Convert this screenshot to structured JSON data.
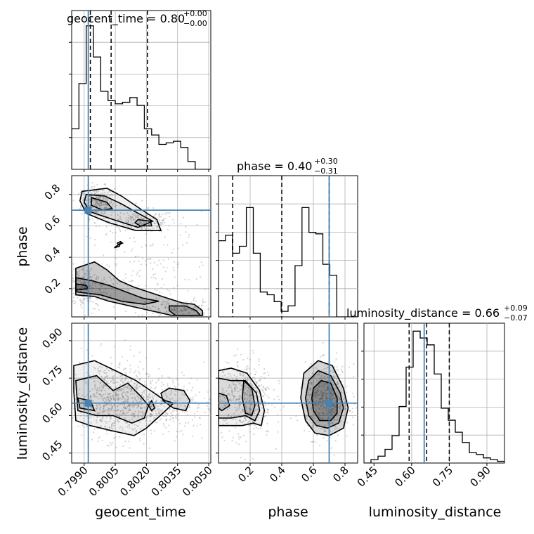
{
  "figure": {
    "type": "corner-plot",
    "truth_color": "#4682b4",
    "parameters": [
      "geocent_time",
      "phase",
      "luminosity_distance"
    ]
  },
  "titles": {
    "geocent_time": {
      "name": "geocent_time",
      "value": "0.80",
      "plus": "+0.00",
      "minus": "−0.00"
    },
    "phase": {
      "name": "phase",
      "value": "0.40",
      "plus": "+0.30",
      "minus": "−0.31"
    },
    "luminosity_distance": {
      "name": "luminosity_distance",
      "value": "0.66",
      "plus": "+0.09",
      "minus": "−0.07"
    }
  },
  "axis_labels": {
    "x_geocent_time": "geocent_time",
    "x_phase": "phase",
    "x_luminosity_distance": "luminosity_distance",
    "y_phase": "phase",
    "y_luminosity_distance": "luminosity_distance"
  },
  "chart_data": [
    {
      "type": "histogram",
      "parameter": "geocent_time",
      "xlim": [
        0.7984,
        0.8051
      ],
      "xticks": [
        "0.7990",
        "0.8005",
        "0.8020",
        "0.8035",
        "0.8050"
      ],
      "xtick_values": [
        0.799,
        0.8005,
        0.802,
        0.8035,
        0.805
      ],
      "bin_edges": [
        0.7984,
        0.79875,
        0.7991,
        0.79945,
        0.7998,
        0.80015,
        0.8005,
        0.80085,
        0.8012,
        0.80155,
        0.8019,
        0.80225,
        0.8026,
        0.80295,
        0.8033,
        0.80365,
        0.804,
        0.80435,
        0.8047,
        0.8051
      ],
      "counts": [
        0.26,
        0.55,
        0.92,
        0.72,
        0.5,
        0.44,
        0.42,
        0.43,
        0.46,
        0.41,
        0.26,
        0.22,
        0.16,
        0.17,
        0.18,
        0.14,
        0.05,
        0.0,
        0.0
      ],
      "ylim": [
        0,
        1.0
      ],
      "quantiles": [
        0.7993,
        0.8003,
        0.80205
      ],
      "truth": 0.7992
    },
    {
      "type": "histogram",
      "parameter": "phase",
      "xlim": [
        0.0,
        0.88
      ],
      "xticks": [
        "0.2",
        "0.4",
        "0.6",
        "0.8"
      ],
      "xtick_values": [
        0.2,
        0.4,
        0.6,
        0.8
      ],
      "bin_edges": [
        0.0,
        0.044,
        0.088,
        0.132,
        0.176,
        0.22,
        0.264,
        0.308,
        0.352,
        0.396,
        0.44,
        0.484,
        0.528,
        0.572,
        0.616,
        0.66,
        0.704,
        0.748,
        0.792,
        0.836,
        0.88
      ],
      "counts": [
        0.55,
        0.59,
        0.46,
        0.51,
        0.79,
        0.46,
        0.18,
        0.16,
        0.11,
        0.04,
        0.08,
        0.37,
        0.79,
        0.61,
        0.6,
        0.38,
        0.3,
        0.0,
        0.0,
        0.0
      ],
      "ylim": [
        0,
        1.0
      ],
      "quantiles": [
        0.09,
        0.4,
        0.7
      ],
      "truth": 0.7
    },
    {
      "type": "histogram",
      "parameter": "luminosity_distance",
      "xlim": [
        0.41,
        0.97
      ],
      "xticks": [
        "0.45",
        "0.60",
        "0.75",
        "0.90"
      ],
      "xtick_values": [
        0.45,
        0.6,
        0.75,
        0.9
      ],
      "bin_edges": [
        0.41,
        0.438,
        0.466,
        0.494,
        0.522,
        0.55,
        0.578,
        0.606,
        0.634,
        0.662,
        0.69,
        0.718,
        0.746,
        0.774,
        0.802,
        0.83,
        0.858,
        0.886,
        0.914,
        0.942,
        0.97
      ],
      "counts": [
        0.0,
        0.02,
        0.04,
        0.08,
        0.16,
        0.33,
        0.56,
        0.77,
        0.73,
        0.69,
        0.52,
        0.32,
        0.25,
        0.18,
        0.12,
        0.06,
        0.05,
        0.03,
        0.02,
        0.01
      ],
      "ylim": [
        0,
        0.8
      ],
      "quantiles": [
        0.59,
        0.66,
        0.75
      ],
      "truth": 0.65
    },
    {
      "type": "2d-density",
      "x": "geocent_time",
      "y": "phase",
      "ylim": [
        0.02,
        0.92
      ],
      "yticks": [
        "0.2",
        "0.4",
        "0.6",
        "0.8"
      ],
      "ytick_values": [
        0.2,
        0.4,
        0.6,
        0.8
      ],
      "truth": [
        0.7992,
        0.7
      ],
      "scatter_clusters": [
        {
          "center": [
            0.79965,
            0.75
          ],
          "spread": [
            0.0004,
            0.05
          ],
          "n": 300
        },
        {
          "center": [
            0.80185,
            0.63
          ],
          "spread": [
            0.0008,
            0.035
          ],
          "n": 200
        },
        {
          "center": [
            0.799,
            0.2
          ],
          "spread": [
            0.0006,
            0.07
          ],
          "n": 280
        },
        {
          "center": [
            0.8036,
            0.07
          ],
          "spread": [
            0.0008,
            0.03
          ],
          "n": 140
        },
        {
          "center": [
            0.80215,
            0.28
          ],
          "spread": [
            0.0015,
            0.2
          ],
          "n": 220
        }
      ],
      "contours": [
        [
          [
            0.7989,
            0.82
          ],
          [
            0.8001,
            0.84
          ],
          [
            0.8008,
            0.79
          ],
          [
            0.8018,
            0.7
          ],
          [
            0.8025,
            0.64
          ],
          [
            0.8027,
            0.57
          ],
          [
            0.8015,
            0.57
          ],
          [
            0.8002,
            0.62
          ],
          [
            0.7991,
            0.68
          ],
          [
            0.7988,
            0.76
          ]
        ],
        [
          [
            0.7991,
            0.8
          ],
          [
            0.8,
            0.79
          ],
          [
            0.8008,
            0.74
          ],
          [
            0.8016,
            0.68
          ],
          [
            0.8023,
            0.63
          ],
          [
            0.8016,
            0.59
          ],
          [
            0.8004,
            0.64
          ],
          [
            0.7993,
            0.69
          ],
          [
            0.799,
            0.75
          ]
        ],
        [
          [
            0.79935,
            0.78
          ],
          [
            0.8001,
            0.75
          ],
          [
            0.80035,
            0.71
          ],
          [
            0.7999,
            0.7
          ],
          [
            0.79935,
            0.73
          ]
        ],
        [
          [
            0.8016,
            0.64
          ],
          [
            0.8022,
            0.63
          ],
          [
            0.80225,
            0.6
          ],
          [
            0.8017,
            0.6
          ],
          [
            0.80145,
            0.62
          ]
        ],
        [
          [
            0.80075,
            0.5
          ],
          [
            0.80085,
            0.49
          ],
          [
            0.80065,
            0.48
          ],
          [
            0.8006,
            0.49
          ]
        ],
        [
          [
            0.80045,
            0.46
          ],
          [
            0.80055,
            0.47
          ],
          [
            0.80075,
            0.49
          ],
          [
            0.8007,
            0.47
          ]
        ],
        [
          [
            0.7986,
            0.33
          ],
          [
            0.7995,
            0.37
          ],
          [
            0.8001,
            0.32
          ],
          [
            0.8007,
            0.25
          ],
          [
            0.8014,
            0.21
          ],
          [
            0.8023,
            0.17
          ],
          [
            0.803,
            0.14
          ],
          [
            0.8037,
            0.11
          ],
          [
            0.8043,
            0.1
          ],
          [
            0.8047,
            0.06
          ],
          [
            0.8047,
            0.03
          ],
          [
            0.8032,
            0.03
          ],
          [
            0.8022,
            0.06
          ],
          [
            0.8012,
            0.09
          ],
          [
            0.8002,
            0.12
          ],
          [
            0.7995,
            0.15
          ],
          [
            0.7986,
            0.16
          ]
        ],
        [
          [
            0.7986,
            0.27
          ],
          [
            0.7994,
            0.25
          ],
          [
            0.8002,
            0.22
          ],
          [
            0.801,
            0.18
          ],
          [
            0.8018,
            0.14
          ],
          [
            0.8026,
            0.12
          ],
          [
            0.8019,
            0.1
          ],
          [
            0.8008,
            0.12
          ],
          [
            0.7998,
            0.16
          ],
          [
            0.7986,
            0.18
          ]
        ],
        [
          [
            0.7986,
            0.23
          ],
          [
            0.7991,
            0.22
          ],
          [
            0.7992,
            0.2
          ],
          [
            0.7986,
            0.19
          ]
        ],
        [
          [
            0.8031,
            0.09
          ],
          [
            0.8039,
            0.09
          ],
          [
            0.8044,
            0.06
          ],
          [
            0.8046,
            0.03
          ],
          [
            0.8034,
            0.03
          ],
          [
            0.8031,
            0.06
          ]
        ]
      ]
    },
    {
      "type": "2d-density",
      "x": "geocent_time",
      "y": "luminosity_distance",
      "ylim": [
        0.41,
        0.97
      ],
      "yticks": [
        "0.45",
        "0.60",
        "0.75",
        "0.90"
      ],
      "ytick_values": [
        0.45,
        0.6,
        0.75,
        0.9
      ],
      "truth": [
        0.7992,
        0.65
      ],
      "scatter_clusters": [
        {
          "center": [
            0.8002,
            0.67
          ],
          "spread": [
            0.0009,
            0.08
          ],
          "n": 500
        },
        {
          "center": [
            0.80155,
            0.64
          ],
          "spread": [
            0.0011,
            0.06
          ],
          "n": 300
        },
        {
          "center": [
            0.8032,
            0.65
          ],
          "spread": [
            0.001,
            0.06
          ],
          "n": 200
        }
      ],
      "contours": [
        [
          [
            0.7985,
            0.8
          ],
          [
            0.7995,
            0.82
          ],
          [
            0.8005,
            0.78
          ],
          [
            0.8015,
            0.74
          ],
          [
            0.8022,
            0.7
          ],
          [
            0.8029,
            0.66
          ],
          [
            0.8033,
            0.65
          ],
          [
            0.8028,
            0.61
          ],
          [
            0.802,
            0.55
          ],
          [
            0.8014,
            0.52
          ],
          [
            0.8003,
            0.54
          ],
          [
            0.7993,
            0.56
          ],
          [
            0.7986,
            0.58
          ],
          [
            0.7985,
            0.7
          ]
        ],
        [
          [
            0.7986,
            0.74
          ],
          [
            0.7996,
            0.76
          ],
          [
            0.8004,
            0.7
          ],
          [
            0.8011,
            0.73
          ],
          [
            0.8017,
            0.68
          ],
          [
            0.8021,
            0.64
          ],
          [
            0.8019,
            0.59
          ],
          [
            0.8013,
            0.57
          ],
          [
            0.8004,
            0.6
          ],
          [
            0.7996,
            0.6
          ],
          [
            0.7987,
            0.62
          ]
        ],
        [
          [
            0.7987,
            0.67
          ],
          [
            0.7993,
            0.66
          ],
          [
            0.7995,
            0.62
          ],
          [
            0.7988,
            0.63
          ]
        ],
        [
          [
            0.8027,
            0.69
          ],
          [
            0.8031,
            0.71
          ],
          [
            0.8038,
            0.7
          ],
          [
            0.8041,
            0.66
          ],
          [
            0.8039,
            0.62
          ],
          [
            0.8033,
            0.63
          ],
          [
            0.8028,
            0.66
          ]
        ],
        [
          [
            0.80225,
            0.66
          ],
          [
            0.8024,
            0.63
          ],
          [
            0.80225,
            0.62
          ],
          [
            0.8021,
            0.64
          ]
        ]
      ]
    },
    {
      "type": "2d-density",
      "x": "phase",
      "y": "luminosity_distance",
      "truth": [
        0.7,
        0.65
      ],
      "scatter_clusters": [
        {
          "center": [
            0.16,
            0.67
          ],
          "spread": [
            0.09,
            0.08
          ],
          "n": 500
        },
        {
          "center": [
            0.69,
            0.66
          ],
          "spread": [
            0.07,
            0.07
          ],
          "n": 500
        }
      ],
      "contours": [
        [
          [
            0.0,
            0.78
          ],
          [
            0.08,
            0.79
          ],
          [
            0.18,
            0.77
          ],
          [
            0.26,
            0.7
          ],
          [
            0.29,
            0.62
          ],
          [
            0.27,
            0.56
          ],
          [
            0.22,
            0.57
          ],
          [
            0.15,
            0.56
          ],
          [
            0.07,
            0.56
          ],
          [
            0.0,
            0.56
          ]
        ],
        [
          [
            0.0,
            0.75
          ],
          [
            0.08,
            0.74
          ],
          [
            0.17,
            0.74
          ],
          [
            0.24,
            0.69
          ],
          [
            0.26,
            0.62
          ],
          [
            0.23,
            0.58
          ],
          [
            0.17,
            0.6
          ],
          [
            0.08,
            0.59
          ],
          [
            0.0,
            0.59
          ]
        ],
        [
          [
            0.0,
            0.69
          ],
          [
            0.05,
            0.68
          ],
          [
            0.07,
            0.64
          ],
          [
            0.02,
            0.62
          ],
          [
            0.0,
            0.63
          ]
        ],
        [
          [
            0.16,
            0.74
          ],
          [
            0.21,
            0.71
          ],
          [
            0.23,
            0.64
          ],
          [
            0.21,
            0.6
          ],
          [
            0.17,
            0.61
          ],
          [
            0.15,
            0.67
          ]
        ],
        [
          [
            0.54,
            0.77
          ],
          [
            0.63,
            0.82
          ],
          [
            0.72,
            0.8
          ],
          [
            0.79,
            0.71
          ],
          [
            0.82,
            0.63
          ],
          [
            0.79,
            0.55
          ],
          [
            0.7,
            0.52
          ],
          [
            0.61,
            0.53
          ],
          [
            0.55,
            0.58
          ],
          [
            0.52,
            0.67
          ]
        ],
        [
          [
            0.57,
            0.74
          ],
          [
            0.63,
            0.78
          ],
          [
            0.71,
            0.76
          ],
          [
            0.77,
            0.69
          ],
          [
            0.79,
            0.63
          ],
          [
            0.76,
            0.57
          ],
          [
            0.69,
            0.55
          ],
          [
            0.62,
            0.56
          ],
          [
            0.57,
            0.6
          ],
          [
            0.55,
            0.67
          ]
        ],
        [
          [
            0.6,
            0.71
          ],
          [
            0.65,
            0.74
          ],
          [
            0.71,
            0.73
          ],
          [
            0.75,
            0.67
          ],
          [
            0.75,
            0.61
          ],
          [
            0.71,
            0.58
          ],
          [
            0.64,
            0.58
          ],
          [
            0.6,
            0.62
          ],
          [
            0.59,
            0.67
          ]
        ]
      ]
    }
  ]
}
